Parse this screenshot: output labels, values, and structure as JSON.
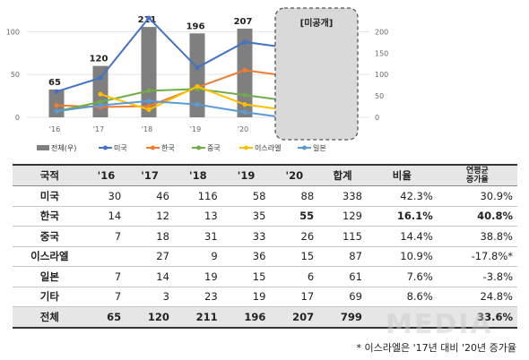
{
  "chart_data": {
    "type": "bar",
    "categories": [
      "'16",
      "'17",
      "'18",
      "'19",
      "'20"
    ],
    "bar_series": {
      "name": "전체(우)",
      "values": [
        65,
        120,
        211,
        196,
        207
      ],
      "color": "#7f7f7f"
    },
    "line_series": [
      {
        "name": "미국",
        "values": [
          30,
          46,
          116,
          58,
          88
        ],
        "color": "#4472c4"
      },
      {
        "name": "한국",
        "values": [
          14,
          12,
          13,
          35,
          55
        ],
        "color": "#ed7d31"
      },
      {
        "name": "중국",
        "values": [
          7,
          18,
          31,
          33,
          26
        ],
        "color": "#70ad47"
      },
      {
        "name": "이스라엘",
        "values": [
          null,
          27,
          9,
          36,
          15
        ],
        "color": "#ffc000"
      },
      {
        "name": "일본",
        "values": [
          7,
          14,
          19,
          15,
          6
        ],
        "color": "#5b9bd5"
      }
    ],
    "y_left": {
      "ticks": [
        0,
        50,
        100
      ],
      "range": [
        0,
        115
      ]
    },
    "y_right": {
      "ticks": [
        0,
        50,
        100,
        150,
        200
      ],
      "range": [
        0,
        230
      ]
    },
    "hidden_box_label": "[미공개]",
    "legend_position": "bottom"
  },
  "table": {
    "headers": [
      "국적",
      "'16",
      "'17",
      "'18",
      "'19",
      "'20",
      "합계",
      "비율"
    ],
    "cagr_header": [
      "연평균",
      "증가율"
    ],
    "rows": [
      {
        "name": "미국",
        "cells": [
          "30",
          "46",
          "116",
          "58",
          "88",
          "338",
          "42.3%",
          "30.9%"
        ]
      },
      {
        "name": "한국",
        "cells": [
          "14",
          "12",
          "13",
          "35",
          "55",
          "129",
          "16.1%",
          "40.8%"
        ]
      },
      {
        "name": "중국",
        "cells": [
          "7",
          "18",
          "31",
          "33",
          "26",
          "115",
          "14.4%",
          "38.8%"
        ]
      },
      {
        "name": "이스라엘",
        "cells": [
          "",
          "27",
          "9",
          "36",
          "15",
          "87",
          "10.9%",
          "-17.8%*"
        ]
      },
      {
        "name": "일본",
        "cells": [
          "7",
          "14",
          "19",
          "15",
          "6",
          "61",
          "7.6%",
          "-3.8%"
        ]
      },
      {
        "name": "기타",
        "cells": [
          "7",
          "3",
          "23",
          "19",
          "17",
          "69",
          "8.6%",
          "24.8%"
        ]
      }
    ],
    "total": {
      "name": "전체",
      "cells": [
        "65",
        "120",
        "211",
        "196",
        "207",
        "799",
        "",
        "33.6%"
      ]
    }
  },
  "footnote": "* 이스라엘은 '17년 대비 '20년 증가율",
  "watermark": "MEDIA"
}
